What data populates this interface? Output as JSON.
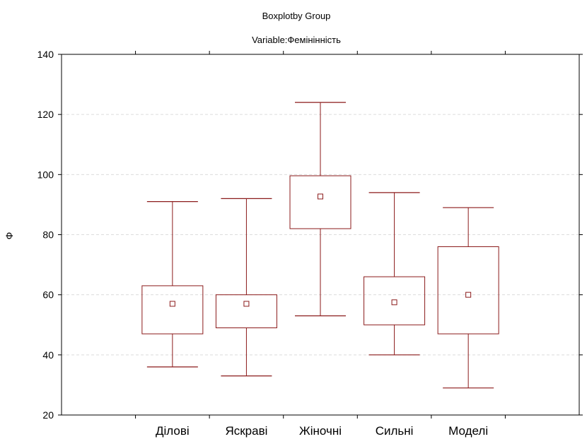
{
  "chart_data": {
    "type": "boxplot",
    "title": "Boxplotby Group",
    "subtitle": "Variable:Фемінінність",
    "xlabel": "",
    "ylabel": "Ф",
    "ylim": [
      20,
      140
    ],
    "yticks": [
      20,
      40,
      60,
      80,
      100,
      120,
      140
    ],
    "grid": "horizontal dashed",
    "colors": {
      "box": "#8b1a1a",
      "grid": "#dcdcdc",
      "axis": "#000000"
    },
    "categories": [
      "Ділові",
      "Яскраві",
      "Жіночні",
      "Сильні",
      "Моделі"
    ],
    "series": [
      {
        "category": "Ділові",
        "min": 36,
        "q1": 47,
        "mean": 57,
        "q3": 63,
        "max": 91
      },
      {
        "category": "Яскраві",
        "min": 33,
        "q1": 49,
        "mean": 57,
        "q3": 60,
        "max": 92
      },
      {
        "category": "Жіночні",
        "min": 53,
        "q1": 82,
        "mean": 92.7,
        "q3": 99.6,
        "max": 124
      },
      {
        "category": "Сильні",
        "min": 40,
        "q1": 50,
        "mean": 57.5,
        "q3": 66,
        "max": 94
      },
      {
        "category": "Моделі",
        "min": 29,
        "q1": 47,
        "mean": 60,
        "q3": 76,
        "max": 89
      }
    ]
  }
}
